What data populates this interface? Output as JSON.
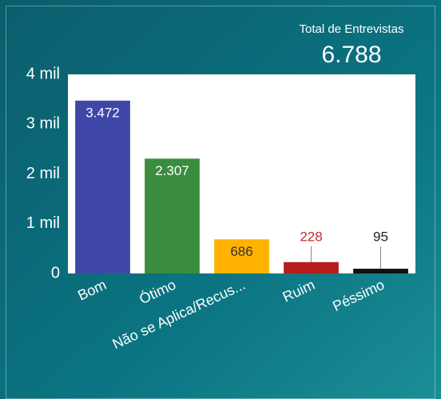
{
  "chart_data": {
    "type": "bar",
    "total_title": "Total de Entrevistas",
    "total_value": "6.788",
    "categories": [
      "Bom",
      "Ótimo",
      "Não se Aplica/Recus...",
      "Ruim",
      "Péssimo"
    ],
    "values": [
      3472,
      2307,
      686,
      228,
      95
    ],
    "value_labels": [
      "3.472",
      "2.307",
      "686",
      "228",
      "95"
    ],
    "colors": [
      "#3f47a8",
      "#3b8c3e",
      "#ffb300",
      "#b71c1c",
      "#111111"
    ],
    "label_colors": [
      "#ffffff",
      "#ffffff",
      "#333333",
      "#c62828",
      "#222222"
    ],
    "ylim": [
      0,
      4000
    ],
    "yticks": [
      0,
      {
        "value": 1000,
        "label": "1 mil"
      },
      {
        "value": 2000,
        "label": "2 mil"
      },
      {
        "value": 3000,
        "label": "3 mil"
      },
      {
        "value": 4000,
        "label": "4 mil"
      }
    ]
  }
}
